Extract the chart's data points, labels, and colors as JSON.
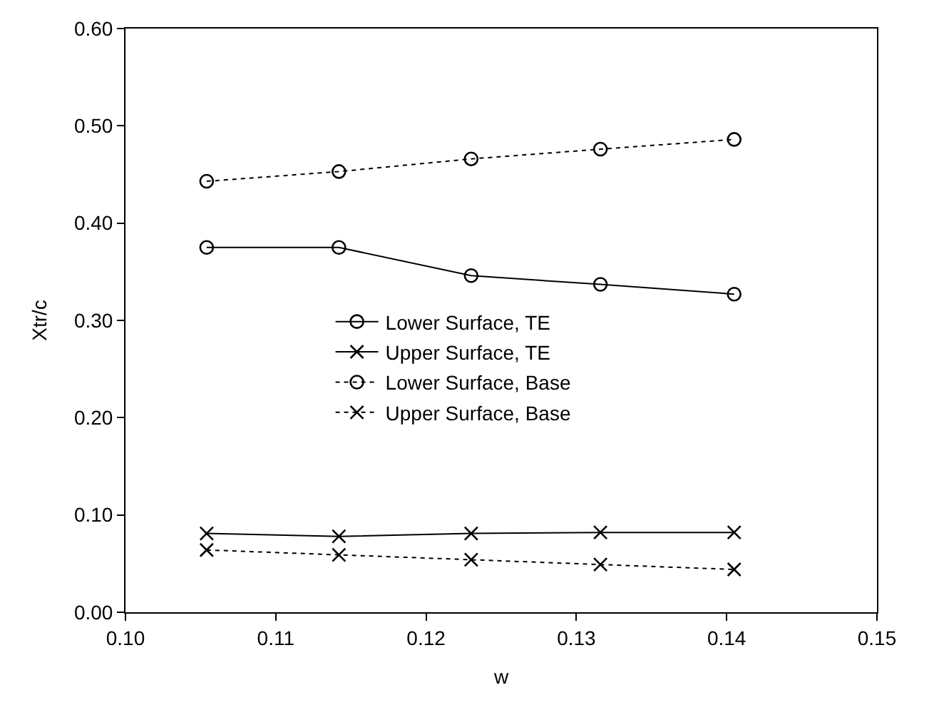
{
  "chart_data": {
    "type": "line",
    "xlabel": "w",
    "ylabel": "Xtr/c",
    "x": [
      0.1054,
      0.1142,
      0.123,
      0.1316,
      0.1405
    ],
    "series": [
      {
        "name": "Lower Surface, TE",
        "color": "#000000",
        "marker": "circle",
        "line_style": "solid",
        "values": [
          0.375,
          0.375,
          0.346,
          0.337,
          0.327
        ]
      },
      {
        "name": "Upper Surface, TE",
        "color": "#000000",
        "marker": "cross",
        "line_style": "solid",
        "values": [
          0.081,
          0.078,
          0.081,
          0.082,
          0.082
        ]
      },
      {
        "name": "Lower Surface, Base",
        "color": "#000000",
        "marker": "circle",
        "line_style": "dotted",
        "values": [
          0.443,
          0.453,
          0.466,
          0.476,
          0.486
        ]
      },
      {
        "name": "Upper Surface, Base",
        "color": "#000000",
        "marker": "cross",
        "line_style": "dotted",
        "values": [
          0.064,
          0.059,
          0.054,
          0.049,
          0.044
        ]
      }
    ],
    "xlim": [
      0.1,
      0.15
    ],
    "xticks": [
      {
        "value": 0.1,
        "label": "0.10"
      },
      {
        "value": 0.11,
        "label": "0.11"
      },
      {
        "value": 0.12,
        "label": "0.12"
      },
      {
        "value": 0.13,
        "label": "0.13"
      },
      {
        "value": 0.14,
        "label": "0.14"
      },
      {
        "value": 0.15,
        "label": "0.15"
      }
    ],
    "ylim": [
      0,
      0.6
    ],
    "yticks": [
      {
        "value": 0,
        "label": "0.00"
      },
      {
        "value": 0.1,
        "label": "0.10"
      },
      {
        "value": 0.2,
        "label": "0.20"
      },
      {
        "value": 0.3,
        "label": "0.30"
      },
      {
        "value": 0.4,
        "label": "0.40"
      },
      {
        "value": 0.5,
        "label": "0.50"
      },
      {
        "value": 0.6,
        "label": "0.60"
      }
    ],
    "legend": "center"
  }
}
